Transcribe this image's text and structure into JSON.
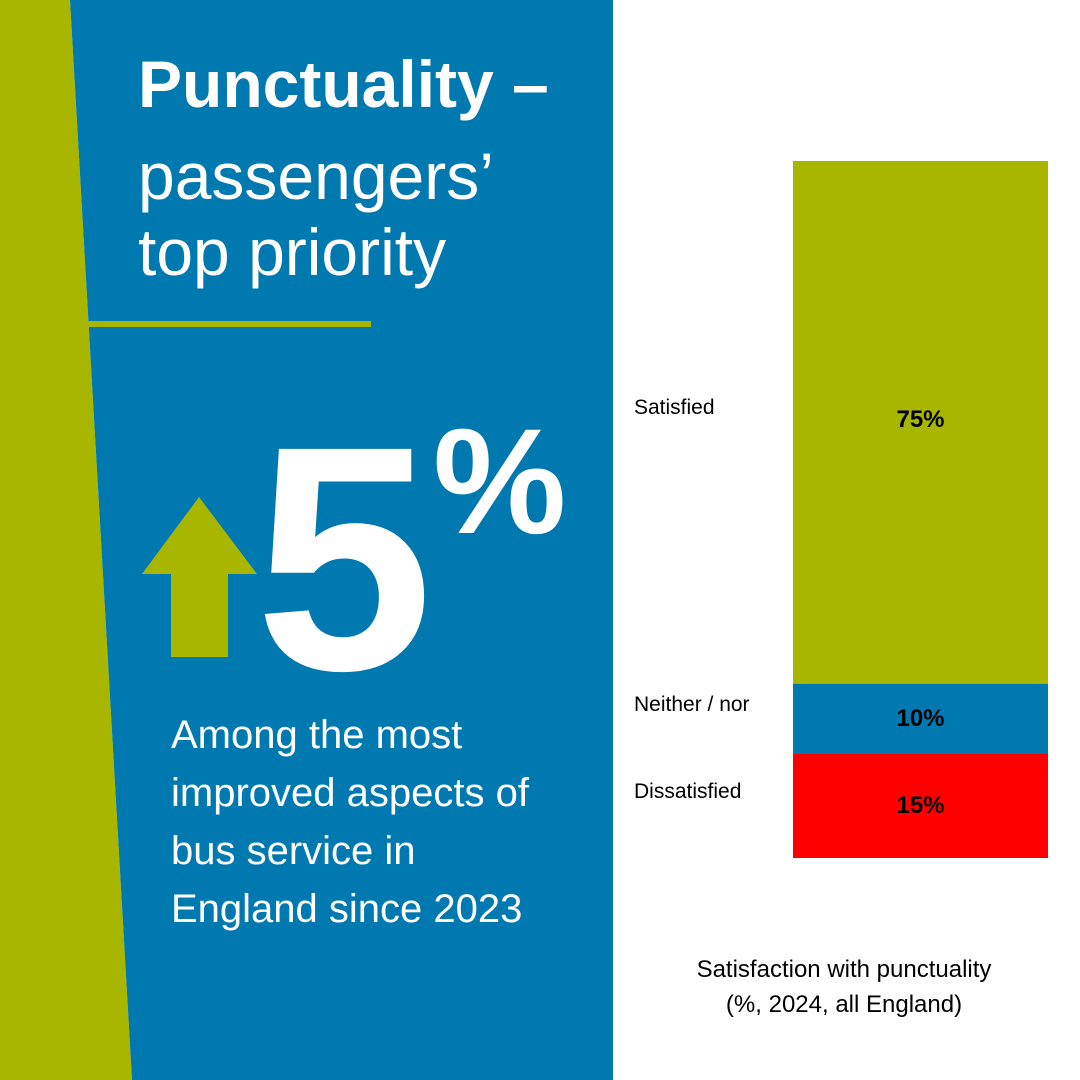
{
  "colors": {
    "green": "#a9b600",
    "blue": "#0078b0",
    "red": "#ff0000",
    "white": "#ffffff"
  },
  "title": {
    "line1": "Punctuality –",
    "line2": "passengers’",
    "line3": "top priority"
  },
  "stat": {
    "icon": "up-arrow-icon",
    "number": "5",
    "unit": "%",
    "description_lines": [
      "Among the most",
      "improved aspects of",
      "bus service in",
      "England since 2023"
    ]
  },
  "chart_data": {
    "type": "bar",
    "stacked": true,
    "categories": [
      "Satisfied",
      "Neither / nor",
      "Dissatisfied"
    ],
    "values": [
      75,
      10,
      15
    ],
    "value_labels": [
      "75%",
      "10%",
      "15%"
    ],
    "series_colors": [
      "#a9b600",
      "#0078b0",
      "#ff0000"
    ],
    "ylim": [
      0,
      100
    ],
    "grid": false,
    "caption_line1": "Satisfaction with punctuality",
    "caption_line2": "(%, 2024, all England)"
  }
}
